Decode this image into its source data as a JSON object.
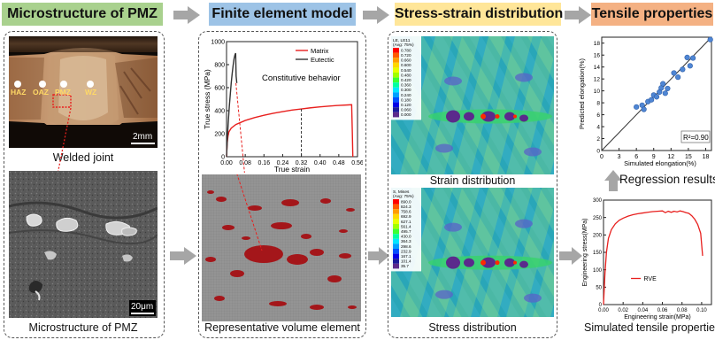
{
  "headers": {
    "pmz": "Microstructure of PMZ",
    "fem": "Finite element model",
    "stress": "Stress-strain distribution",
    "tensile": "Tensile properties"
  },
  "colors": {
    "pmz_header": "#a9d18e",
    "fem_header": "#9dc3e6",
    "stress_header": "#ffe699",
    "tensile_header": "#f4b183",
    "arrow": "#a6a6a6",
    "matrix_line": "#e8201e",
    "eutectic_line": "#333333",
    "eutectic_particles": "#a4161a"
  },
  "pmz": {
    "weld_labels": [
      "HAZ",
      "OAZ",
      "PMZ",
      "WZ"
    ],
    "scale_top": "2mm",
    "caption_top": "Welded joint",
    "scale_bottom": "20μm",
    "caption_bottom": "Microstructure of PMZ"
  },
  "fem": {
    "constitutive_label": "Constitutive behavior",
    "caption": "Representative volume element"
  },
  "stress": {
    "strain_legend_title": [
      "LE, LE11",
      "(Avg: 75%)"
    ],
    "strain_legend_values": [
      "0.780",
      "0.720",
      "0.660",
      "0.600",
      "0.540",
      "0.480",
      "0.420",
      "0.360",
      "0.300",
      "0.240",
      "0.180",
      "0.120",
      "0.060",
      "0.000"
    ],
    "strain_caption": "Strain distribution",
    "stress_legend_title": [
      "S, Mises",
      "(Avg: 75%)"
    ],
    "stress_legend_values": [
      "890.0",
      "824.3",
      "758.6",
      "692.9",
      "627.1",
      "561.4",
      "495.7",
      "430.0",
      "364.3",
      "298.6",
      "232.9",
      "167.1",
      "101.4",
      "35.7"
    ],
    "stress_caption": "Stress distribution",
    "legend_colors": [
      "#ff0000",
      "#ff5a00",
      "#ff9c00",
      "#ffd700",
      "#e6ff00",
      "#a0ff00",
      "#3cff32",
      "#00ffa0",
      "#00e6ff",
      "#00a0ff",
      "#0050ff",
      "#0000e6",
      "#1a1a99",
      "#5b2a8c"
    ]
  },
  "tensile": {
    "regression_caption": "Regression results",
    "tensile_caption": "Simulated tensile properties"
  },
  "chart_data": [
    {
      "type": "line",
      "xlabel": "True strain",
      "ylabel": "True stress (MPa)",
      "xlim": [
        0,
        0.56
      ],
      "ylim": [
        0,
        1000
      ],
      "xticks": [
        "0.00",
        "0.08",
        "0.16",
        "0.24",
        "0.32",
        "0.40",
        "0.48",
        "0.56"
      ],
      "yticks": [
        "0",
        "200",
        "400",
        "600",
        "800",
        "1000"
      ],
      "series": [
        {
          "name": "Matrix",
          "x": [
            0,
            0.003,
            0.006,
            0.01,
            0.02,
            0.04,
            0.08,
            0.12,
            0.16,
            0.2,
            0.24,
            0.28,
            0.32,
            0.36,
            0.4,
            0.44,
            0.48,
            0.52,
            0.535,
            0.538,
            0.54
          ],
          "y": [
            0,
            120,
            175,
            215,
            248,
            280,
            315,
            340,
            360,
            377,
            392,
            405,
            415,
            425,
            433,
            440,
            446,
            450,
            452,
            200,
            0
          ]
        },
        {
          "name": "Eutectic",
          "x": [
            0,
            0.004,
            0.008,
            0.012,
            0.016,
            0.02,
            0.024,
            0.028,
            0.032,
            0.036,
            0.039,
            0.041,
            0.044
          ],
          "y": [
            0,
            180,
            320,
            440,
            540,
            640,
            720,
            790,
            850,
            885,
            900,
            700,
            640
          ]
        }
      ]
    },
    {
      "type": "scatter",
      "xlabel": "Simulated elongation(%)",
      "ylabel": "Predicted elongation(%)",
      "xlim": [
        0,
        19
      ],
      "ylim": [
        0,
        19
      ],
      "xticks": [
        "0",
        "3",
        "6",
        "9",
        "12",
        "15",
        "18"
      ],
      "yticks": [
        "0",
        "2",
        "4",
        "6",
        "8",
        "10",
        "12",
        "14",
        "16",
        "18"
      ],
      "annotation": "R²=0.90",
      "fit_line": [
        [
          0,
          0
        ],
        [
          19,
          19
        ]
      ],
      "x": [
        6.0,
        7.0,
        7.3,
        8.0,
        8.6,
        9.0,
        9.5,
        10.0,
        10.3,
        10.6,
        11.0,
        11.4,
        12.5,
        13.2,
        14.0,
        14.8,
        15.3,
        15.8,
        18.8
      ],
      "y": [
        7.3,
        7.6,
        6.9,
        8.2,
        8.5,
        9.3,
        9.0,
        9.8,
        10.5,
        11.2,
        9.6,
        10.4,
        13.0,
        12.3,
        13.6,
        15.6,
        14.2,
        15.5,
        18.6
      ]
    },
    {
      "type": "line",
      "xlabel": "Engineering strain(MPa)",
      "ylabel": "Engineering stress(MPa)",
      "xlim": [
        0,
        0.11
      ],
      "ylim": [
        0,
        300
      ],
      "xticks": [
        "0.00",
        "0.02",
        "0.04",
        "0.06",
        "0.08",
        "0.10"
      ],
      "yticks": [
        "0",
        "50",
        "100",
        "150",
        "200",
        "250",
        "300"
      ],
      "series": [
        {
          "name": "RVE",
          "x": [
            0,
            0.0015,
            0.003,
            0.005,
            0.008,
            0.012,
            0.016,
            0.02,
            0.025,
            0.03,
            0.035,
            0.04,
            0.045,
            0.05,
            0.055,
            0.06,
            0.063,
            0.066,
            0.069,
            0.072,
            0.075,
            0.078,
            0.081,
            0.084,
            0.087,
            0.09,
            0.093,
            0.096,
            0.099,
            0.101
          ],
          "y": [
            0,
            90,
            150,
            190,
            215,
            232,
            242,
            248,
            254,
            258,
            261,
            263,
            265,
            267,
            268,
            269,
            264,
            268,
            265,
            268,
            266,
            269,
            267,
            264,
            262,
            255,
            245,
            230,
            205,
            140
          ]
        }
      ]
    }
  ]
}
